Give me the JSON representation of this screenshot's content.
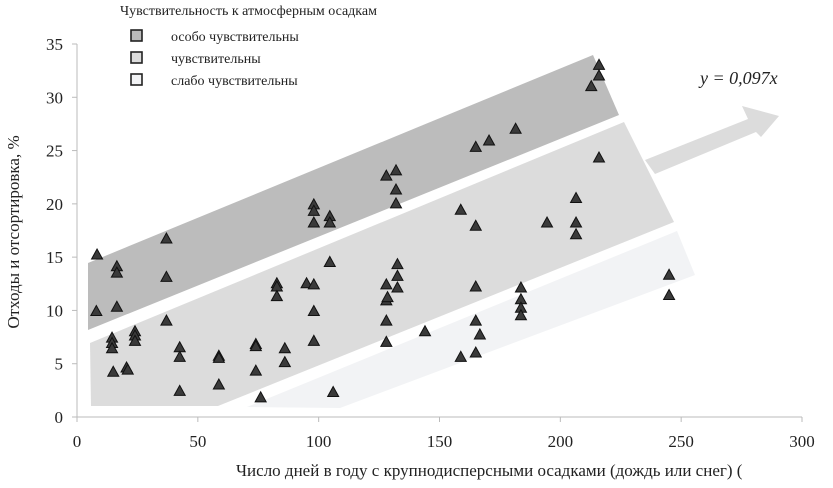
{
  "chart_data": {
    "type": "scatter",
    "title": "",
    "xlabel": "Число дней в году с крупнодисперсными  осадками (дождь или снег) (",
    "ylabel": "Отходы и отсортировка, %",
    "xlim": [
      0,
      300
    ],
    "ylim": [
      0,
      35
    ],
    "xticks": [
      "0",
      "50",
      "100",
      "150",
      "200",
      "250",
      "300"
    ],
    "yticks": [
      "0",
      "5",
      "10",
      "15",
      "20",
      "25",
      "30",
      "35"
    ],
    "grid": false,
    "marker": "triangle",
    "marker_color": "#3a3a3a",
    "legend": {
      "title": "Чувствительность к атмосферным осадкам",
      "placement": "top-left",
      "items": [
        {
          "label": "особо чувствительны",
          "color": "#bcbcbc"
        },
        {
          "label": "чувствительны",
          "color": "#dcdcdc"
        },
        {
          "label": "слабо чувствительны",
          "color": "#f2f3f5"
        }
      ]
    },
    "annotation": "y = 0,097x",
    "trend_arrow_color": "#dcdcdc",
    "points": [
      [
        8.3,
        15.2
      ],
      [
        8,
        9.9
      ],
      [
        16.5,
        14.1
      ],
      [
        16.5,
        13.5
      ],
      [
        16.5,
        10.3
      ],
      [
        14.5,
        7.4
      ],
      [
        14.5,
        6.9
      ],
      [
        14.5,
        6.4
      ],
      [
        15,
        4.2
      ],
      [
        20.5,
        4.6
      ],
      [
        21,
        4.4
      ],
      [
        24,
        8
      ],
      [
        24,
        7.6
      ],
      [
        24,
        7.1
      ],
      [
        37,
        16.7
      ],
      [
        37,
        13.1
      ],
      [
        37,
        9
      ],
      [
        42.5,
        6.5
      ],
      [
        42.5,
        5.6
      ],
      [
        42.5,
        2.4
      ],
      [
        58.7,
        5.7
      ],
      [
        58.7,
        5.5
      ],
      [
        58.7,
        3
      ],
      [
        74,
        6.8
      ],
      [
        74,
        6.6
      ],
      [
        74,
        4.3
      ],
      [
        76,
        1.8
      ],
      [
        82.7,
        12.5
      ],
      [
        82.7,
        12.2
      ],
      [
        82.7,
        11.3
      ],
      [
        86,
        6.4
      ],
      [
        86,
        5.1
      ],
      [
        95,
        12.5
      ],
      [
        98,
        19.9
      ],
      [
        98,
        19.3
      ],
      [
        98,
        18.2
      ],
      [
        104.6,
        18.8
      ],
      [
        104.6,
        18.2
      ],
      [
        98,
        12.4
      ],
      [
        98,
        9.9
      ],
      [
        98,
        7.1
      ],
      [
        104.6,
        14.5
      ],
      [
        106,
        2.3
      ],
      [
        128,
        22.6
      ],
      [
        132,
        23.1
      ],
      [
        132,
        21.3
      ],
      [
        132,
        20
      ],
      [
        128,
        12.4
      ],
      [
        128,
        10.9
      ],
      [
        128.5,
        11.2
      ],
      [
        128,
        9
      ],
      [
        128,
        7
      ],
      [
        132.6,
        14.3
      ],
      [
        132.6,
        13.2
      ],
      [
        132.6,
        12.1
      ],
      [
        144,
        8
      ],
      [
        158.8,
        19.4
      ],
      [
        158.8,
        5.6
      ],
      [
        165,
        25.3
      ],
      [
        165,
        17.9
      ],
      [
        165,
        12.2
      ],
      [
        165,
        9
      ],
      [
        166.7,
        7.7
      ],
      [
        165,
        6
      ],
      [
        170.5,
        25.9
      ],
      [
        181.5,
        27
      ],
      [
        183.7,
        12.1
      ],
      [
        183.7,
        11
      ],
      [
        183.7,
        10.2
      ],
      [
        183.7,
        9.5
      ],
      [
        194.5,
        18.2
      ],
      [
        206.5,
        20.5
      ],
      [
        206.5,
        18.2
      ],
      [
        206.5,
        17.1
      ],
      [
        212.8,
        31
      ],
      [
        216,
        33
      ],
      [
        216,
        32
      ],
      [
        216,
        24.3
      ],
      [
        245,
        13.3
      ],
      [
        245,
        11.4
      ]
    ]
  }
}
